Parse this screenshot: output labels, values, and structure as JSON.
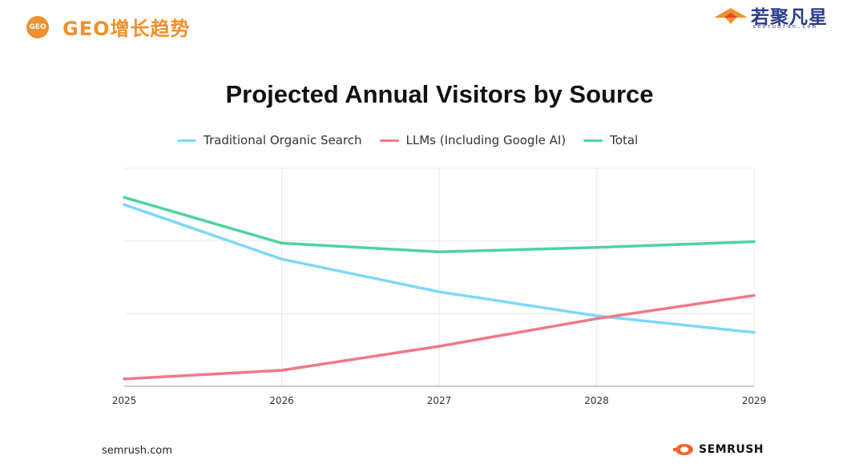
{
  "header": {
    "badge": "GEO",
    "title": "GEO增长趋势",
    "brand_name": "若聚凡星",
    "brand_sub": "seoruofan.com"
  },
  "footer": {
    "source": "semrush.com",
    "logo_text": "SEMRUSH"
  },
  "colors": {
    "accent": "#f0902e",
    "brand": "#2b3b8c",
    "semrush": "#ff642d"
  },
  "chart_data": {
    "type": "line",
    "title": "Projected Annual Visitors by Source",
    "x": [
      "2025",
      "2026",
      "2027",
      "2028",
      "2029"
    ],
    "ylim": [
      0,
      3
    ],
    "grid": true,
    "legend": "top",
    "series": [
      {
        "name": "Traditional Organic Search",
        "color": "#7dd8f7",
        "values": [
          2.5,
          1.75,
          1.3,
          0.97,
          0.74
        ]
      },
      {
        "name": "LLMs (Including Google AI)",
        "color": "#f0788c",
        "values": [
          0.1,
          0.22,
          0.55,
          0.93,
          1.25
        ]
      },
      {
        "name": "Total",
        "color": "#4dd39f",
        "values": [
          2.6,
          1.97,
          1.85,
          1.91,
          1.99
        ]
      }
    ]
  }
}
